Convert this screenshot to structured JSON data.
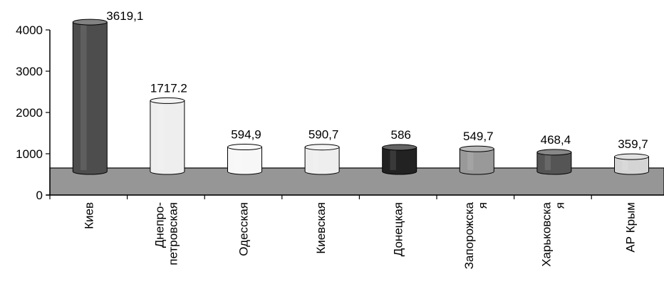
{
  "chart_data": {
    "type": "bar",
    "style": "3d-cylinder",
    "title": "",
    "xlabel": "",
    "ylabel": "",
    "ylim": [
      0,
      4000
    ],
    "yticks": [
      "0",
      "1000",
      "2000",
      "3000",
      "4000"
    ],
    "grid": false,
    "legend": "none",
    "categories": [
      {
        "lines": [
          "Киев"
        ]
      },
      {
        "lines": [
          "Днепро-",
          "петровская"
        ]
      },
      {
        "lines": [
          "Одесская"
        ]
      },
      {
        "lines": [
          "Киевская"
        ]
      },
      {
        "lines": [
          "Донецкая"
        ]
      },
      {
        "lines": [
          "Запорожска",
          "я"
        ]
      },
      {
        "lines": [
          "Харьковска",
          "я"
        ]
      },
      {
        "lines": [
          "АР Крым"
        ]
      }
    ],
    "values": [
      3619.1,
      1717.2,
      594.9,
      590.7,
      586,
      549.7,
      468.4,
      359.7
    ],
    "value_labels": [
      "3619,1",
      "1717.2",
      "594,9",
      "590,7",
      "586",
      "549,7",
      "468,4",
      "359,7"
    ],
    "colors": [
      "#4d4d4d",
      "#eeeeee",
      "#f7f7f7",
      "#eeeeee",
      "#222222",
      "#999999",
      "#555555",
      "#d4d4d4"
    ],
    "floor_color": "#969696"
  }
}
